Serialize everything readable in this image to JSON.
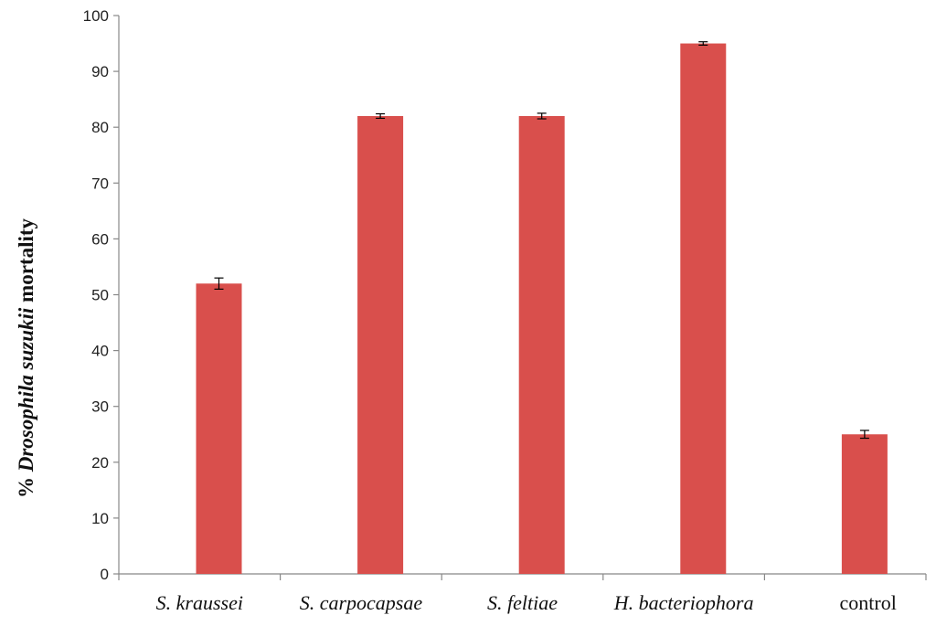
{
  "chart_data": {
    "type": "bar",
    "categories": [
      "S. kraussei",
      "S. carpocapsae",
      "S. feltiae",
      "H. bacteriophora",
      "control"
    ],
    "category_italic": [
      true,
      true,
      true,
      true,
      false
    ],
    "values": [
      52,
      82,
      82,
      95,
      25
    ],
    "errors": [
      1.0,
      0.4,
      0.5,
      0.3,
      0.7
    ],
    "ylim": [
      0,
      100
    ],
    "yticks": [
      0,
      10,
      20,
      30,
      40,
      50,
      60,
      70,
      80,
      90,
      100
    ],
    "ylabel_parts": [
      {
        "text": "% ",
        "italic": false
      },
      {
        "text": "Drosophila suzukii",
        "italic": true
      },
      {
        "text": " mortality",
        "italic": false
      }
    ],
    "title": "",
    "xlabel": "",
    "grid": false,
    "bar_color": "#d94f4c"
  }
}
